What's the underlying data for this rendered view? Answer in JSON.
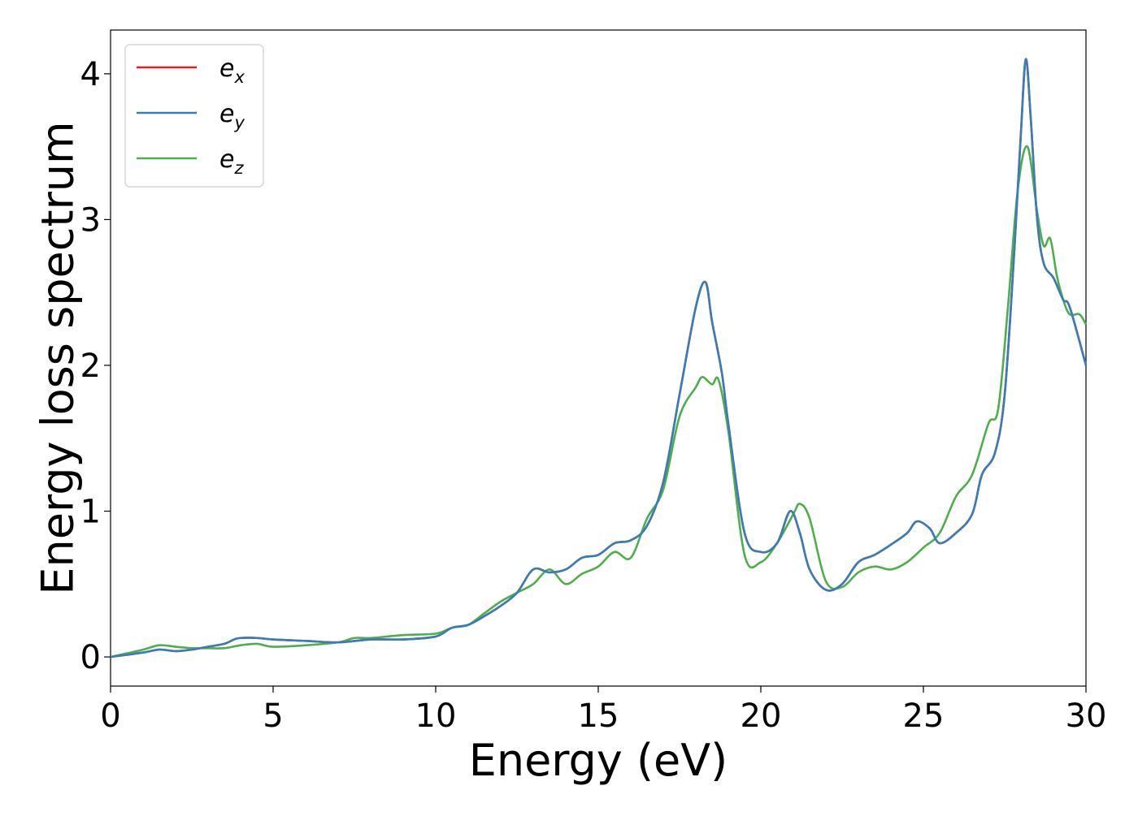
{
  "chart_data": {
    "type": "line",
    "title": "",
    "xlabel": "Energy (eV)",
    "ylabel": "Energy loss spectrum",
    "xlim": [
      0,
      30
    ],
    "ylim": [
      -0.2,
      4.3
    ],
    "xticks": [
      0,
      5,
      10,
      15,
      20,
      25,
      30
    ],
    "xtick_labels": [
      "0",
      "5",
      "10",
      "15",
      "20",
      "25",
      "30"
    ],
    "yticks": [
      0,
      1,
      2,
      3,
      4
    ],
    "ytick_labels": [
      "0",
      "1",
      "2",
      "3",
      "4"
    ],
    "grid": false,
    "legend_position": "top-left",
    "series": [
      {
        "name": "e",
        "subscript": "x",
        "color": "#e41a1c",
        "x": [
          0,
          1,
          1.5,
          2,
          2.5,
          3,
          3.5,
          3.8,
          4,
          4.5,
          5,
          6,
          7,
          8,
          9,
          10,
          10.5,
          11,
          11.5,
          12,
          12.5,
          13,
          13.5,
          14,
          14.5,
          15,
          15.5,
          16,
          16.5,
          17,
          17.5,
          18,
          18.3,
          18.5,
          18.8,
          19,
          19.5,
          20,
          20.5,
          20.9,
          21.2,
          21.5,
          22,
          22.5,
          23,
          23.5,
          24,
          24.5,
          24.8,
          25.2,
          25.5,
          26,
          26.5,
          26.8,
          27.2,
          27.5,
          27.8,
          28,
          28.15,
          28.3,
          28.5,
          28.7,
          29,
          29.3,
          29.5,
          30
        ],
        "y": [
          0,
          0.03,
          0.05,
          0.04,
          0.05,
          0.07,
          0.09,
          0.12,
          0.13,
          0.13,
          0.12,
          0.11,
          0.1,
          0.12,
          0.12,
          0.14,
          0.2,
          0.22,
          0.28,
          0.35,
          0.44,
          0.6,
          0.58,
          0.6,
          0.68,
          0.7,
          0.78,
          0.8,
          0.9,
          1.2,
          1.8,
          2.4,
          2.57,
          2.3,
          1.95,
          1.6,
          0.85,
          0.72,
          0.78,
          1.0,
          0.85,
          0.6,
          0.46,
          0.5,
          0.65,
          0.7,
          0.77,
          0.85,
          0.93,
          0.88,
          0.78,
          0.85,
          0.98,
          1.25,
          1.4,
          1.8,
          2.8,
          3.6,
          4.1,
          3.7,
          3.0,
          2.7,
          2.6,
          2.45,
          2.4,
          2.0
        ]
      },
      {
        "name": "e",
        "subscript": "y",
        "color": "#377eb8",
        "x": [
          0,
          1,
          1.5,
          2,
          2.5,
          3,
          3.5,
          3.8,
          4,
          4.5,
          5,
          6,
          7,
          8,
          9,
          10,
          10.5,
          11,
          11.5,
          12,
          12.5,
          13,
          13.5,
          14,
          14.5,
          15,
          15.5,
          16,
          16.5,
          17,
          17.5,
          18,
          18.3,
          18.5,
          18.8,
          19,
          19.5,
          20,
          20.5,
          20.9,
          21.2,
          21.5,
          22,
          22.5,
          23,
          23.5,
          24,
          24.5,
          24.8,
          25.2,
          25.5,
          26,
          26.5,
          26.8,
          27.2,
          27.5,
          27.8,
          28,
          28.15,
          28.3,
          28.5,
          28.7,
          29,
          29.3,
          29.5,
          30
        ],
        "y": [
          0,
          0.03,
          0.05,
          0.04,
          0.05,
          0.07,
          0.09,
          0.12,
          0.13,
          0.13,
          0.12,
          0.11,
          0.1,
          0.12,
          0.12,
          0.14,
          0.2,
          0.22,
          0.28,
          0.35,
          0.44,
          0.6,
          0.58,
          0.6,
          0.68,
          0.7,
          0.78,
          0.8,
          0.9,
          1.2,
          1.8,
          2.4,
          2.57,
          2.3,
          1.95,
          1.6,
          0.85,
          0.72,
          0.78,
          1.0,
          0.85,
          0.6,
          0.46,
          0.5,
          0.65,
          0.7,
          0.77,
          0.85,
          0.93,
          0.88,
          0.78,
          0.85,
          0.98,
          1.25,
          1.4,
          1.8,
          2.8,
          3.6,
          4.1,
          3.7,
          3.0,
          2.7,
          2.6,
          2.45,
          2.4,
          2.0
        ]
      },
      {
        "name": "e",
        "subscript": "z",
        "color": "#4daf4a",
        "x": [
          0,
          1,
          1.5,
          2,
          2.5,
          3,
          3.5,
          4,
          4.5,
          5,
          6,
          7,
          7.5,
          8,
          9,
          10,
          10.5,
          11,
          11.5,
          12,
          12.5,
          13,
          13.5,
          14,
          14.5,
          15,
          15.5,
          16,
          16.5,
          17,
          17.5,
          18,
          18.2,
          18.5,
          18.7,
          19,
          19.5,
          20,
          20.5,
          21,
          21.2,
          21.5,
          22,
          22.5,
          23,
          23.5,
          24,
          24.5,
          25,
          25.5,
          26,
          26.5,
          27,
          27.3,
          27.6,
          27.9,
          28.2,
          28.5,
          28.7,
          28.9,
          29.1,
          29.3,
          29.5,
          29.8,
          30
        ],
        "y": [
          0,
          0.05,
          0.08,
          0.07,
          0.06,
          0.06,
          0.06,
          0.08,
          0.09,
          0.07,
          0.08,
          0.1,
          0.13,
          0.13,
          0.15,
          0.16,
          0.2,
          0.22,
          0.3,
          0.38,
          0.44,
          0.5,
          0.6,
          0.5,
          0.57,
          0.62,
          0.72,
          0.68,
          0.95,
          1.15,
          1.65,
          1.85,
          1.92,
          1.87,
          1.9,
          1.55,
          0.7,
          0.65,
          0.78,
          0.98,
          1.05,
          0.95,
          0.52,
          0.48,
          0.58,
          0.62,
          0.6,
          0.65,
          0.75,
          0.85,
          1.1,
          1.25,
          1.6,
          1.7,
          2.4,
          3.2,
          3.5,
          3.05,
          2.82,
          2.87,
          2.62,
          2.45,
          2.35,
          2.35,
          2.28
        ]
      }
    ]
  }
}
